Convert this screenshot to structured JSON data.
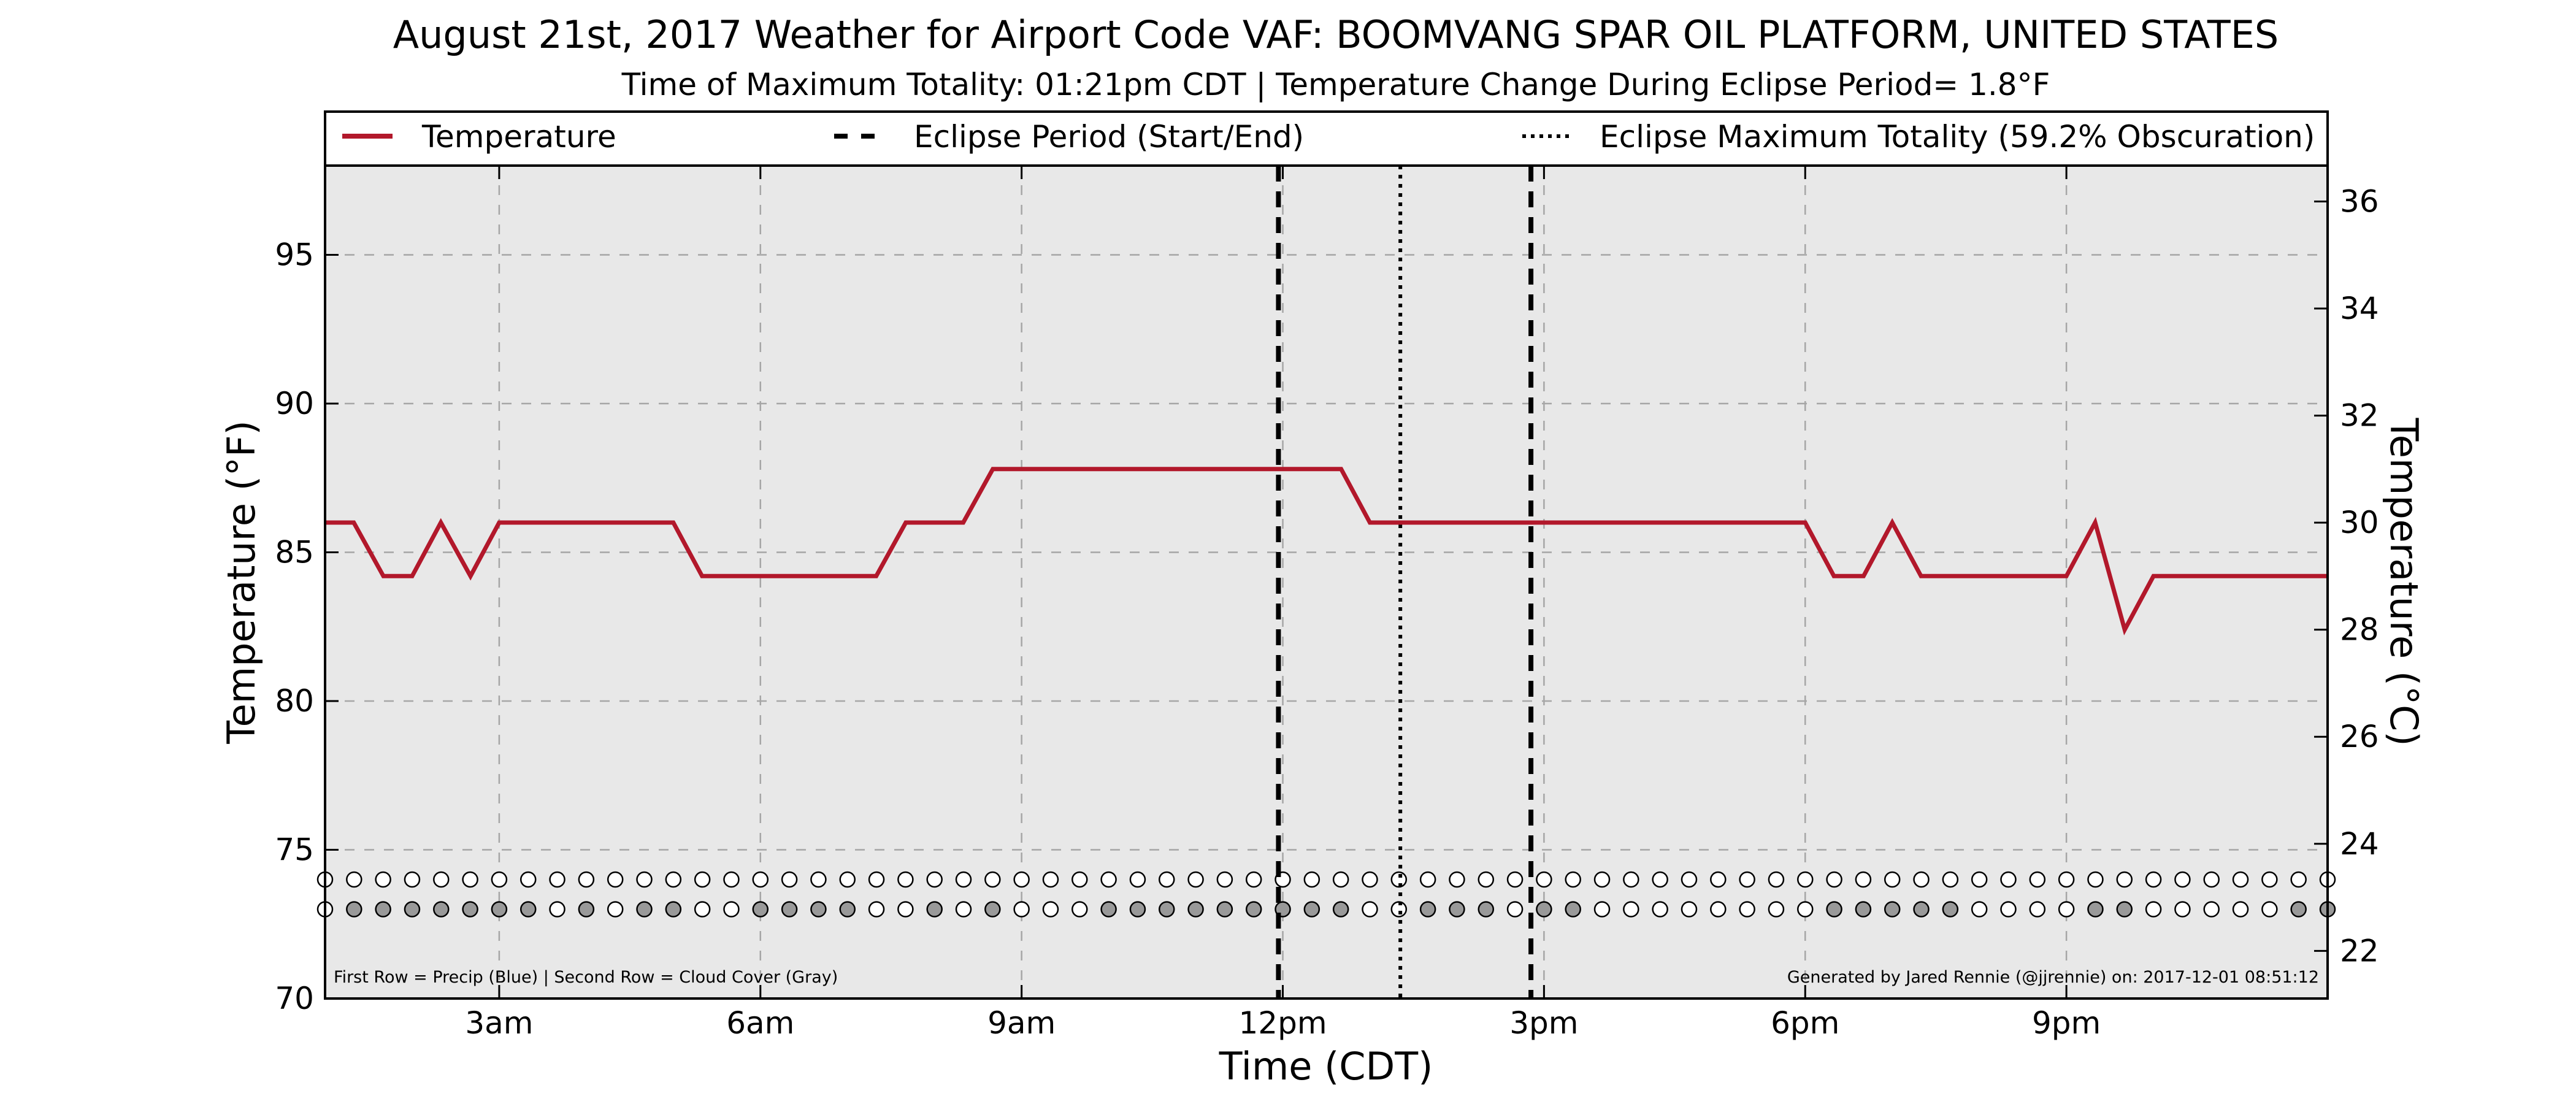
{
  "chart_data": {
    "type": "line",
    "title": "August 21st, 2017 Weather for Airport Code VAF: BOOMVANG SPAR OIL PLATFORM, UNITED STATES",
    "subtitle": "Time of Maximum Totality: 01:21pm CDT | Temperature Change During Eclipse Period= 1.8°F",
    "xlabel": "Time (CDT)",
    "ylabel": "Temperature (°F)",
    "ylabel_right": "Temperature (°C)",
    "xlim": [
      1.0,
      24.0
    ],
    "ylim": [
      70,
      98
    ],
    "ylim_right": [
      21.11,
      36.67
    ],
    "x_ticks": [
      {
        "x": 3,
        "label": "3am"
      },
      {
        "x": 6,
        "label": "6am"
      },
      {
        "x": 9,
        "label": "9am"
      },
      {
        "x": 12,
        "label": "12pm"
      },
      {
        "x": 15,
        "label": "3pm"
      },
      {
        "x": 18,
        "label": "6pm"
      },
      {
        "x": 21,
        "label": "9pm"
      }
    ],
    "y_ticks": [
      70,
      75,
      80,
      85,
      90,
      95
    ],
    "y_ticks_right": [
      22,
      24,
      26,
      28,
      30,
      32,
      34,
      36
    ],
    "grid": true,
    "legend_position": "top",
    "legend": [
      {
        "label": "Temperature",
        "style": "solid"
      },
      {
        "label": "Eclipse Period (Start/End)",
        "style": "dashed"
      },
      {
        "label": "Eclipse Maximum Totality (59.2% Obscuration)",
        "style": "dotted"
      }
    ],
    "series": [
      {
        "name": "Temperature",
        "color": "#b2182b",
        "x": [
          1.0,
          1.33,
          1.67,
          2.0,
          2.33,
          2.67,
          3.0,
          3.33,
          3.67,
          4.0,
          4.33,
          4.67,
          5.0,
          5.33,
          5.67,
          6.0,
          6.33,
          6.67,
          7.0,
          7.33,
          7.67,
          8.0,
          8.33,
          8.67,
          9.0,
          9.33,
          9.67,
          10.0,
          10.33,
          10.67,
          11.0,
          11.33,
          11.67,
          12.0,
          12.33,
          12.67,
          13.0,
          13.33,
          13.67,
          14.0,
          14.33,
          14.67,
          15.0,
          15.33,
          15.67,
          16.0,
          16.33,
          16.67,
          17.0,
          17.33,
          17.67,
          18.0,
          18.33,
          18.67,
          19.0,
          19.33,
          19.67,
          20.0,
          20.33,
          20.67,
          21.0,
          21.33,
          21.67,
          22.0,
          22.33,
          22.67,
          23.0,
          23.33,
          23.67,
          24.0
        ],
        "values": [
          86.0,
          86.0,
          84.2,
          84.2,
          86.0,
          84.2,
          86.0,
          86.0,
          86.0,
          86.0,
          86.0,
          86.0,
          86.0,
          84.2,
          84.2,
          84.2,
          84.2,
          84.2,
          84.2,
          84.2,
          86.0,
          86.0,
          86.0,
          87.8,
          87.8,
          87.8,
          87.8,
          87.8,
          87.8,
          87.8,
          87.8,
          87.8,
          87.8,
          87.8,
          87.8,
          87.8,
          86.0,
          86.0,
          86.0,
          86.0,
          86.0,
          86.0,
          86.0,
          86.0,
          86.0,
          86.0,
          86.0,
          86.0,
          86.0,
          86.0,
          86.0,
          86.0,
          84.2,
          84.2,
          86.0,
          84.2,
          84.2,
          84.2,
          84.2,
          84.2,
          84.2,
          86.0,
          82.4,
          84.2,
          84.2,
          84.2,
          84.2,
          84.2,
          84.2,
          84.2
        ]
      }
    ],
    "eclipse_start": 11.95,
    "eclipse_end": 14.85,
    "eclipse_max": 13.35,
    "marker_rows": {
      "precip_y": 74.0,
      "cloud_y": 73.0,
      "x_start": 1.0,
      "x_end": 24.0,
      "count": 70,
      "cloud_filled": [
        0,
        1,
        1,
        1,
        1,
        1,
        1,
        1,
        0,
        1,
        0,
        1,
        1,
        0,
        0,
        1,
        1,
        1,
        1,
        0,
        0,
        1,
        0,
        1,
        0,
        0,
        0,
        1,
        1,
        1,
        1,
        1,
        1,
        1,
        1,
        1,
        0,
        0,
        1,
        1,
        1,
        0,
        1,
        1,
        0,
        0,
        0,
        0,
        0,
        0,
        0,
        0,
        1,
        1,
        1,
        1,
        1,
        0,
        0,
        0,
        0,
        1,
        1,
        0,
        0,
        0,
        0,
        0,
        1,
        1
      ],
      "precip_color": "#ffffff",
      "cloud_color": "#999999"
    },
    "footer_left": "First Row = Precip (Blue) | Second Row = Cloud Cover (Gray)",
    "footer_right": "Generated by Jared Rennie (@jjrennie) on: 2017-12-01 08:51:12"
  }
}
